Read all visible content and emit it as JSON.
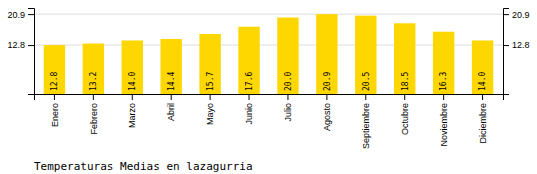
{
  "chart_data": {
    "type": "bar",
    "title": "Temperaturas Medias en lazagurria",
    "categories": [
      "Enero",
      "Febrero",
      "Marzo",
      "Abril",
      "Mayo",
      "Junio",
      "Julio",
      "Agosto",
      "Septiembre",
      "Octubre",
      "Noviembre",
      "Diciembre"
    ],
    "values": [
      12.8,
      13.2,
      14.0,
      14.4,
      15.7,
      17.6,
      20.0,
      20.9,
      20.5,
      18.5,
      16.3,
      14.0
    ],
    "value_labels": [
      "12.8",
      "13.2",
      "14.0",
      "14.4",
      "15.7",
      "17.6",
      "20.0",
      "20.9",
      "20.5",
      "18.5",
      "16.3",
      "14.0"
    ],
    "color": "#FFD700",
    "ylim": [
      0.0,
      22.5
    ],
    "yticks": [
      12.8,
      20.9
    ],
    "y2lim": [
      0.0,
      22.5
    ],
    "y2ticks": [
      12.8,
      20.9
    ],
    "grid": true,
    "data_labels": true
  }
}
